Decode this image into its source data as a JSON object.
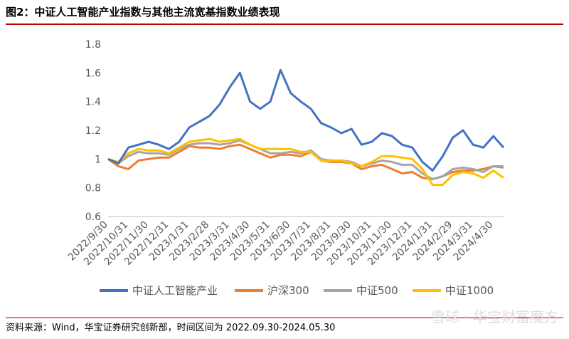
{
  "chart_data": {
    "type": "line",
    "title": "图2：中证人工智能产业指数与其他主流宽基指数业绩表现",
    "source": "资料来源：Wind，华宝证券研究创新部，时间区间为 2022.09.30-2024.05.30",
    "watermark": "雪球 · 华宝财富魔方",
    "categories": [
      "2022/9/30",
      null,
      "2022/10/31",
      null,
      "2022/11/30",
      null,
      "2022/12/31",
      null,
      "2023/1/31",
      null,
      "2023/2/28",
      null,
      "2023/3/31",
      null,
      "2023/4/30",
      null,
      "2023/5/31",
      null,
      "2023/6/30",
      null,
      "2023/7/31",
      null,
      "2023/8/31",
      null,
      "2023/9/30",
      null,
      "2023/10/31",
      null,
      "2023/11/30",
      null,
      "2023/12/31",
      null,
      "2024/1/31",
      null,
      "2024/2/29",
      null,
      "2024/3/31",
      null,
      "2024/4/30",
      null
    ],
    "series": [
      {
        "name": "中证人工智能产业",
        "color": "#4472c4",
        "values": [
          1.0,
          0.97,
          1.08,
          1.1,
          1.12,
          1.1,
          1.07,
          1.12,
          1.22,
          1.26,
          1.3,
          1.38,
          1.5,
          1.6,
          1.4,
          1.35,
          1.4,
          1.62,
          1.46,
          1.4,
          1.35,
          1.25,
          1.22,
          1.18,
          1.21,
          1.1,
          1.12,
          1.18,
          1.16,
          1.1,
          1.08,
          0.98,
          0.92,
          1.02,
          1.15,
          1.2,
          1.1,
          1.08,
          1.16,
          1.08
        ]
      },
      {
        "name": "沪深300",
        "color": "#ed7d31",
        "values": [
          1.0,
          0.95,
          0.93,
          0.99,
          1.0,
          1.01,
          1.01,
          1.05,
          1.09,
          1.08,
          1.08,
          1.07,
          1.09,
          1.1,
          1.07,
          1.04,
          1.01,
          1.03,
          1.03,
          1.02,
          1.05,
          0.99,
          0.98,
          0.98,
          0.97,
          0.93,
          0.95,
          0.96,
          0.93,
          0.9,
          0.91,
          0.87,
          0.86,
          0.88,
          0.91,
          0.92,
          0.92,
          0.93,
          0.95,
          0.94
        ]
      },
      {
        "name": "中证500",
        "color": "#a5a5a5",
        "values": [
          1.0,
          0.97,
          1.02,
          1.05,
          1.04,
          1.04,
          1.03,
          1.07,
          1.1,
          1.11,
          1.11,
          1.1,
          1.11,
          1.13,
          1.1,
          1.07,
          1.04,
          1.04,
          1.05,
          1.04,
          1.06,
          1.0,
          0.99,
          0.99,
          0.98,
          0.95,
          0.97,
          0.99,
          0.98,
          0.96,
          0.96,
          0.9,
          0.86,
          0.88,
          0.93,
          0.94,
          0.93,
          0.91,
          0.95,
          0.95
        ]
      },
      {
        "name": "中证1000",
        "color": "#ffc000",
        "values": [
          1.0,
          0.98,
          1.04,
          1.07,
          1.06,
          1.06,
          1.04,
          1.08,
          1.12,
          1.13,
          1.14,
          1.12,
          1.13,
          1.14,
          1.1,
          1.07,
          1.07,
          1.07,
          1.07,
          1.05,
          1.05,
          0.99,
          0.99,
          0.99,
          0.97,
          0.95,
          0.98,
          1.02,
          1.02,
          1.01,
          1.0,
          0.93,
          0.82,
          0.82,
          0.89,
          0.91,
          0.9,
          0.87,
          0.92,
          0.87
        ]
      }
    ],
    "ylim": [
      0.6,
      1.8
    ],
    "yticks": [
      0.6,
      0.8,
      1,
      1.2,
      1.4,
      1.6,
      1.8
    ],
    "grid": false,
    "legend": "bottom"
  }
}
